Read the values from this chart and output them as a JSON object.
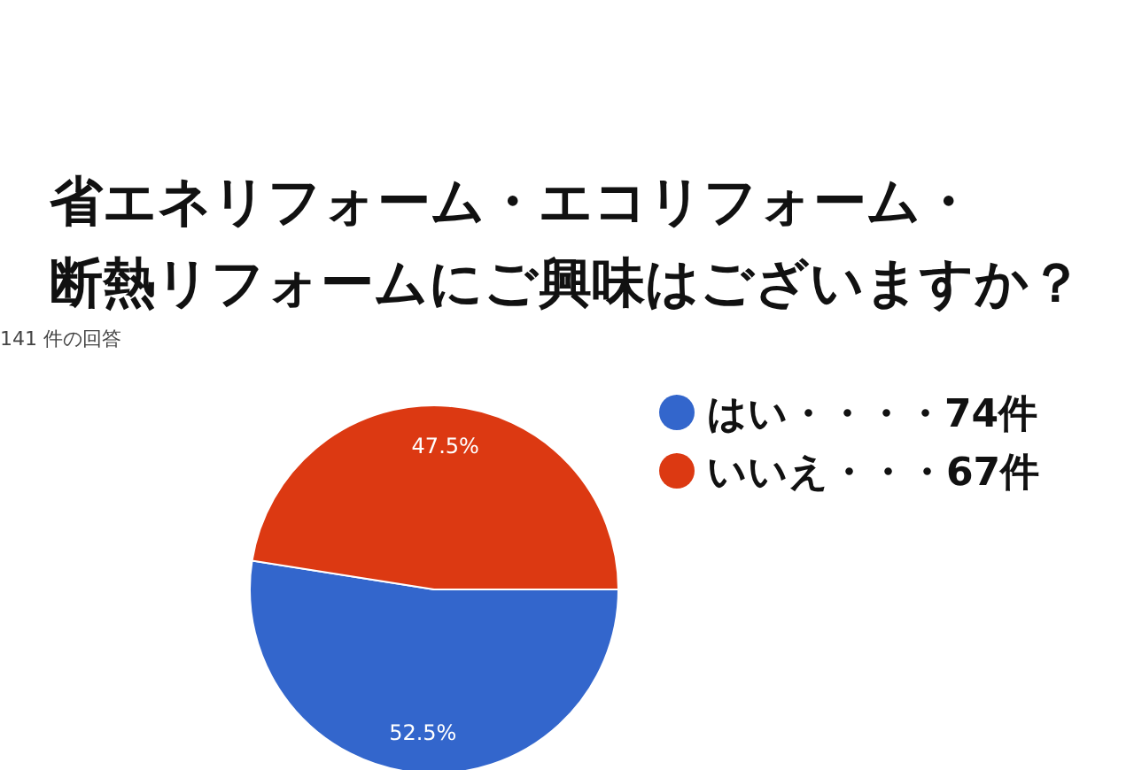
{
  "chart_data": {
    "type": "pie",
    "title": "省エネリフォーム・エコリフォーム・断熱リフォームにご興味はございますか？",
    "subtitle": "141 件の回答",
    "categories": [
      "はい・・・・74件",
      "いいえ・・・67件"
    ],
    "values": [
      52.5,
      47.5
    ],
    "colors": [
      "#3366cc",
      "#dc3912"
    ],
    "value_labels": [
      "52.5%",
      "47.5%"
    ],
    "legend": "right"
  }
}
